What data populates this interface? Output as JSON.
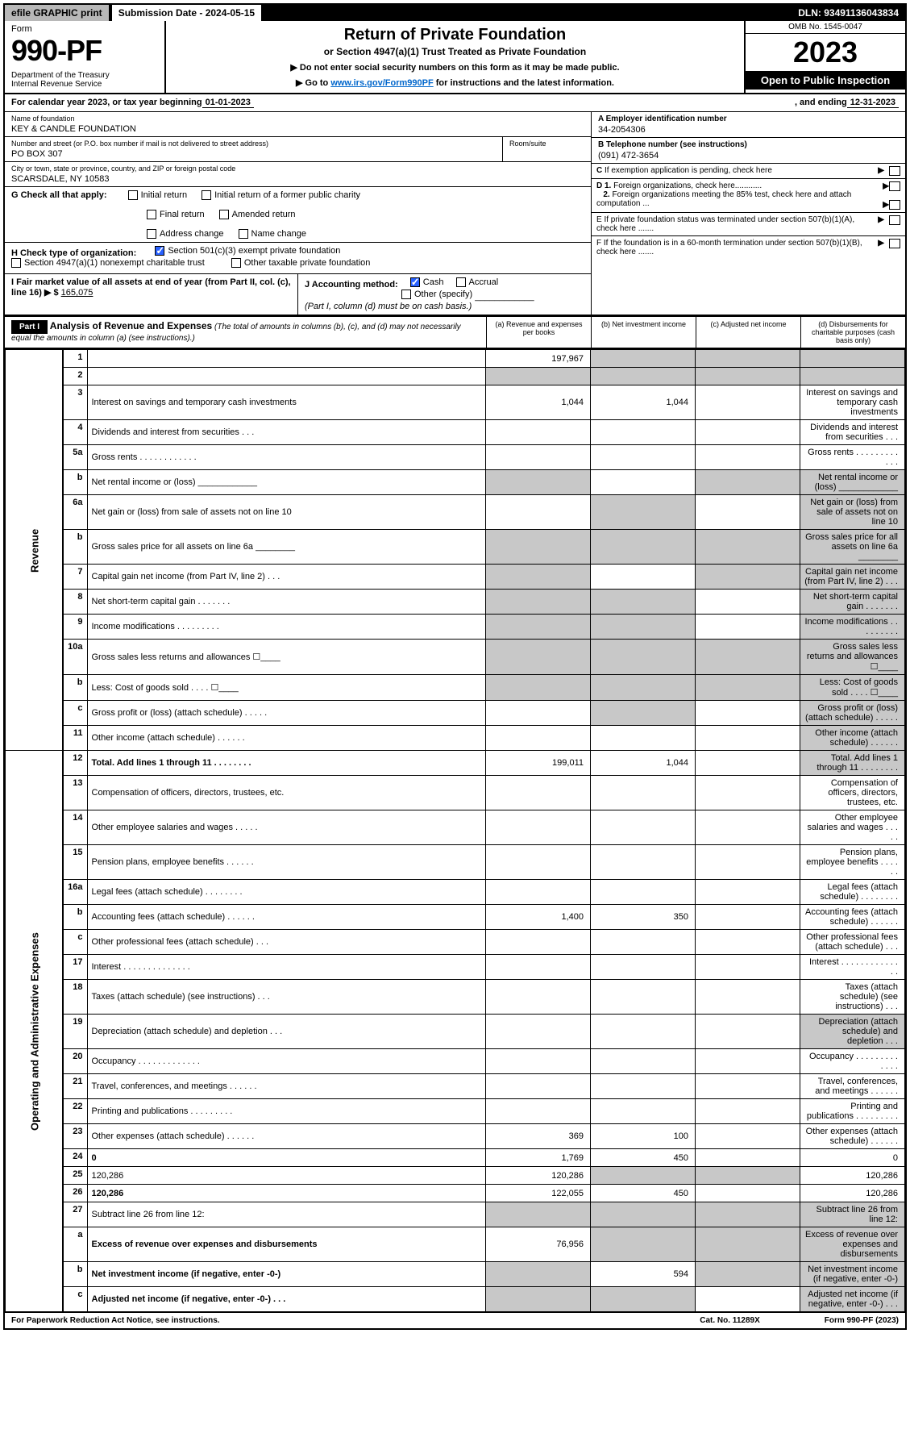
{
  "topbar": {
    "efile": "efile GRAPHIC print",
    "subdate_label": "Submission Date - 2024-05-15",
    "dln": "DLN: 93491136043834"
  },
  "header": {
    "form_label": "Form",
    "form_num": "990-PF",
    "dept": "Department of the Treasury\nInternal Revenue Service",
    "title": "Return of Private Foundation",
    "subtitle": "or Section 4947(a)(1) Trust Treated as Private Foundation",
    "note1": "▶ Do not enter social security numbers on this form as it may be made public.",
    "note2_pre": "▶ Go to ",
    "note2_link": "www.irs.gov/Form990PF",
    "note2_post": " for instructions and the latest information.",
    "omb": "OMB No. 1545-0047",
    "year": "2023",
    "inspect": "Open to Public Inspection"
  },
  "cal": {
    "label": "For calendar year 2023, or tax year beginning ",
    "begin": "01-01-2023",
    "mid": " , and ending ",
    "end": "12-31-2023"
  },
  "info": {
    "name_lbl": "Name of foundation",
    "name": "KEY & CANDLE FOUNDATION",
    "addr_lbl": "Number and street (or P.O. box number if mail is not delivered to street address)",
    "addr": "PO BOX 307",
    "room_lbl": "Room/suite",
    "city_lbl": "City or town, state or province, country, and ZIP or foreign postal code",
    "city": "SCARSDALE, NY  10583",
    "a_lbl": "A Employer identification number",
    "a_val": "34-2054306",
    "b_lbl": "B Telephone number (see instructions)",
    "b_val": "(091) 472-3654",
    "c_lbl": "C If exemption application is pending, check here",
    "d1": "D 1. Foreign organizations, check here............",
    "d2": "2. Foreign organizations meeting the 85% test, check here and attach computation ...",
    "e": "E  If private foundation status was terminated under section 507(b)(1)(A), check here .......",
    "f": "F  If the foundation is in a 60-month termination under section 507(b)(1)(B), check here ......."
  },
  "g": {
    "label": "G Check all that apply:",
    "opts": [
      "Initial return",
      "Final return",
      "Address change",
      "Initial return of a former public charity",
      "Amended return",
      "Name change"
    ]
  },
  "h": {
    "label": "H Check type of organization:",
    "opt1": "Section 501(c)(3) exempt private foundation",
    "opt2": "Section 4947(a)(1) nonexempt charitable trust",
    "opt3": "Other taxable private foundation"
  },
  "i": {
    "label": "I Fair market value of all assets at end of year (from Part II, col. (c), line 16) ▶ $ ",
    "val": "165,075"
  },
  "j": {
    "label": "J Accounting method:",
    "cash": "Cash",
    "accrual": "Accrual",
    "other": "Other (specify)",
    "note": "(Part I, column (d) must be on cash basis.)"
  },
  "part1": {
    "tag": "Part I",
    "title": "Analysis of Revenue and Expenses",
    "sub": " (The total of amounts in columns (b), (c), and (d) may not necessarily equal the amounts in column (a) (see instructions).)",
    "cols": [
      "(a)   Revenue and expenses per books",
      "(b)   Net investment income",
      "(c)   Adjusted net income",
      "(d)  Disbursements for charitable purposes (cash basis only)"
    ]
  },
  "rows": [
    {
      "n": "1",
      "d": "",
      "a": "197,967",
      "b": "",
      "c": "",
      "shade_b": true,
      "shade_c": true,
      "shade_d": true
    },
    {
      "n": "2",
      "d": "",
      "a": "",
      "b": "",
      "c": "",
      "shade_a": true,
      "shade_b": true,
      "shade_c": true,
      "shade_d": true
    },
    {
      "n": "3",
      "d": "Interest on savings and temporary cash investments",
      "a": "1,044",
      "b": "1,044"
    },
    {
      "n": "4",
      "d": "Dividends and interest from securities   .   .   .",
      "a": "",
      "b": ""
    },
    {
      "n": "5a",
      "d": "Gross rents  .   .   .   .   .   .   .   .   .   .   .   .",
      "a": "",
      "b": ""
    },
    {
      "n": "b",
      "d": "Net rental income or (loss)  ____________",
      "shade_a": true,
      "shade_c": true,
      "shade_d": true
    },
    {
      "n": "6a",
      "d": "Net gain or (loss) from sale of assets not on line 10",
      "a": "",
      "shade_b": true,
      "shade_d": true
    },
    {
      "n": "b",
      "d": "Gross sales price for all assets on line 6a ________",
      "shade_a": true,
      "shade_b": true,
      "shade_c": true,
      "shade_d": true
    },
    {
      "n": "7",
      "d": "Capital gain net income (from Part IV, line 2)   .   .   .",
      "shade_a": true,
      "b": "",
      "shade_c": true,
      "shade_d": true
    },
    {
      "n": "8",
      "d": "Net short-term capital gain  .   .   .   .   .   .   .",
      "shade_a": true,
      "shade_b": true,
      "c": "",
      "shade_d": true
    },
    {
      "n": "9",
      "d": "Income modifications  .   .   .   .   .   .   .   .   .",
      "shade_a": true,
      "shade_b": true,
      "c": "",
      "shade_d": true
    },
    {
      "n": "10a",
      "d": "Gross sales less returns and allowances  ☐____",
      "shade_a": true,
      "shade_b": true,
      "shade_c": true,
      "shade_d": true
    },
    {
      "n": "b",
      "d": "Less: Cost of goods sold   .   .   .   .   ☐____",
      "shade_a": true,
      "shade_b": true,
      "shade_c": true,
      "shade_d": true
    },
    {
      "n": "c",
      "d": "Gross profit or (loss) (attach schedule)   .   .   .   .   .",
      "a": "",
      "shade_b": true,
      "c": "",
      "shade_d": true
    },
    {
      "n": "11",
      "d": "Other income (attach schedule)   .   .   .   .   .   .",
      "a": "",
      "b": "",
      "c": "",
      "shade_d": true
    },
    {
      "n": "12",
      "d": "Total. Add lines 1 through 11  .   .   .   .   .   .   .   .",
      "bold": true,
      "a": "199,011",
      "b": "1,044",
      "c": "",
      "shade_d": true
    },
    {
      "n": "13",
      "d": "Compensation of officers, directors, trustees, etc."
    },
    {
      "n": "14",
      "d": "Other employee salaries and wages  .   .   .   .   ."
    },
    {
      "n": "15",
      "d": "Pension plans, employee benefits  .   .   .   .   .   ."
    },
    {
      "n": "16a",
      "d": "Legal fees (attach schedule)  .   .   .   .   .   .   .   ."
    },
    {
      "n": "b",
      "d": "Accounting fees (attach schedule)  .   .   .   .   .   .",
      "a": "1,400",
      "b": "350"
    },
    {
      "n": "c",
      "d": "Other professional fees (attach schedule)   .   .   ."
    },
    {
      "n": "17",
      "d": "Interest  .   .   .   .   .   .   .   .   .   .   .   .   .   ."
    },
    {
      "n": "18",
      "d": "Taxes (attach schedule) (see instructions)   .   .   ."
    },
    {
      "n": "19",
      "d": "Depreciation (attach schedule) and depletion   .   .   .",
      "shade_d": true
    },
    {
      "n": "20",
      "d": "Occupancy  .   .   .   .   .   .   .   .   .   .   .   .   ."
    },
    {
      "n": "21",
      "d": "Travel, conferences, and meetings  .   .   .   .   .   ."
    },
    {
      "n": "22",
      "d": "Printing and publications  .   .   .   .   .   .   .   .   ."
    },
    {
      "n": "23",
      "d": "Other expenses (attach schedule)  .   .   .   .   .   .",
      "a": "369",
      "b": "100"
    },
    {
      "n": "24",
      "d": "0",
      "bold": true,
      "a": "1,769",
      "b": "450",
      "c": ""
    },
    {
      "n": "25",
      "d": "120,286",
      "a": "120,286",
      "shade_b": true,
      "shade_c": true
    },
    {
      "n": "26",
      "d": "120,286",
      "bold": true,
      "a": "122,055",
      "b": "450",
      "c": ""
    },
    {
      "n": "27",
      "d": "Subtract line 26 from line 12:",
      "shade_a": true,
      "shade_b": true,
      "shade_c": true,
      "shade_d": true
    },
    {
      "n": "a",
      "d": "Excess of revenue over expenses and disbursements",
      "bold": true,
      "a": "76,956",
      "shade_b": true,
      "shade_c": true,
      "shade_d": true
    },
    {
      "n": "b",
      "d": "Net investment income (if negative, enter -0-)",
      "bold": true,
      "shade_a": true,
      "b": "594",
      "shade_c": true,
      "shade_d": true
    },
    {
      "n": "c",
      "d": "Adjusted net income (if negative, enter -0-)   .   .   .",
      "bold": true,
      "shade_a": true,
      "shade_b": true,
      "c": "",
      "shade_d": true
    }
  ],
  "vert": {
    "rev": "Revenue",
    "exp": "Operating and Administrative Expenses"
  },
  "footer": {
    "left": "For Paperwork Reduction Act Notice, see instructions.",
    "mid": "Cat. No. 11289X",
    "right": "Form 990-PF (2023)"
  }
}
